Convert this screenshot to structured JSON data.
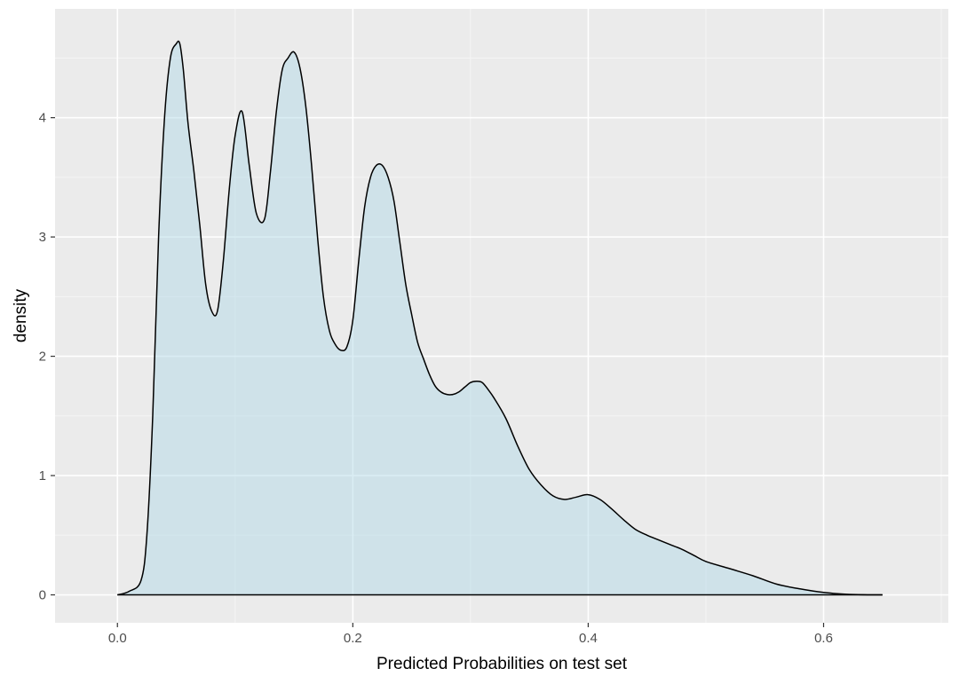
{
  "chart_data": {
    "type": "area",
    "title": "",
    "xlabel": "Predicted Probabilities on test set",
    "ylabel": "density",
    "xlim": [
      -0.053,
      0.706
    ],
    "ylim": [
      -0.234,
      4.912
    ],
    "x_ticks": [
      0.0,
      0.2,
      0.4,
      0.6
    ],
    "x_tick_labels": [
      "0.0",
      "0.2",
      "0.4",
      "0.6"
    ],
    "y_ticks": [
      0,
      1,
      2,
      3,
      4
    ],
    "y_tick_labels": [
      "0",
      "1",
      "2",
      "3",
      "4"
    ],
    "grid": true,
    "colors": {
      "panel_background": "#ebebeb",
      "grid_major": "#ffffff",
      "grid_minor": "#f5f5f5",
      "fill": "#add8e6",
      "outline": "#000000"
    },
    "fill_opacity": 0.45,
    "series": [
      {
        "x": [
          0.0,
          0.01,
          0.02,
          0.025,
          0.03,
          0.035,
          0.04,
          0.045,
          0.05,
          0.053,
          0.056,
          0.06,
          0.065,
          0.07,
          0.075,
          0.08,
          0.085,
          0.09,
          0.095,
          0.1,
          0.106,
          0.112,
          0.118,
          0.125,
          0.13,
          0.135,
          0.14,
          0.145,
          0.15,
          0.155,
          0.16,
          0.165,
          0.17,
          0.175,
          0.18,
          0.185,
          0.19,
          0.195,
          0.2,
          0.205,
          0.21,
          0.215,
          0.22,
          0.225,
          0.23,
          0.235,
          0.24,
          0.245,
          0.25,
          0.255,
          0.26,
          0.265,
          0.27,
          0.275,
          0.28,
          0.285,
          0.29,
          0.295,
          0.3,
          0.305,
          0.31,
          0.315,
          0.32,
          0.33,
          0.34,
          0.35,
          0.36,
          0.37,
          0.38,
          0.39,
          0.4,
          0.41,
          0.42,
          0.43,
          0.44,
          0.45,
          0.46,
          0.47,
          0.48,
          0.49,
          0.5,
          0.52,
          0.54,
          0.56,
          0.58,
          0.6,
          0.62,
          0.64,
          0.65
        ],
        "y": [
          0.0,
          0.03,
          0.12,
          0.5,
          1.5,
          3.0,
          4.0,
          4.5,
          4.62,
          4.62,
          4.4,
          3.95,
          3.55,
          3.1,
          2.6,
          2.38,
          2.38,
          2.8,
          3.4,
          3.85,
          4.05,
          3.6,
          3.2,
          3.15,
          3.55,
          4.05,
          4.4,
          4.5,
          4.55,
          4.42,
          4.1,
          3.6,
          3.0,
          2.5,
          2.22,
          2.1,
          2.05,
          2.08,
          2.3,
          2.8,
          3.25,
          3.5,
          3.6,
          3.6,
          3.5,
          3.3,
          2.95,
          2.6,
          2.35,
          2.12,
          1.98,
          1.85,
          1.75,
          1.7,
          1.68,
          1.68,
          1.7,
          1.74,
          1.78,
          1.79,
          1.78,
          1.72,
          1.65,
          1.48,
          1.25,
          1.05,
          0.92,
          0.83,
          0.8,
          0.82,
          0.84,
          0.8,
          0.72,
          0.63,
          0.55,
          0.5,
          0.46,
          0.42,
          0.38,
          0.33,
          0.28,
          0.22,
          0.16,
          0.09,
          0.05,
          0.02,
          0.005,
          0.0,
          0.0
        ]
      }
    ]
  }
}
